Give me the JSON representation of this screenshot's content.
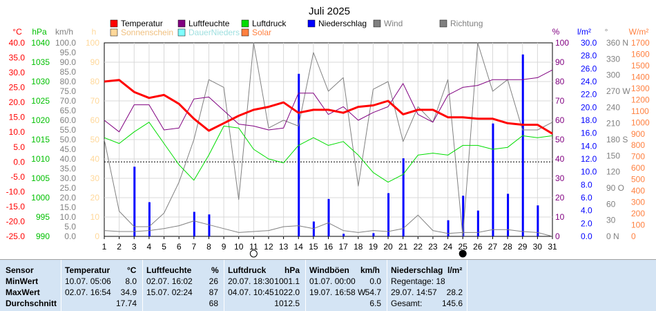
{
  "chart_data": {
    "type": "line",
    "title": "Juli 2025",
    "x": [
      1,
      2,
      3,
      4,
      5,
      6,
      7,
      8,
      9,
      10,
      11,
      12,
      13,
      14,
      15,
      16,
      17,
      18,
      19,
      20,
      21,
      22,
      23,
      24,
      25,
      26,
      27,
      28,
      29,
      30,
      31
    ],
    "legend": [
      {
        "name": "Temperatur",
        "color": "#ff0000",
        "text_color": "#000000"
      },
      {
        "name": "Luftfeuchte",
        "color": "#800080",
        "text_color": "#000000"
      },
      {
        "name": "Luftdruck",
        "color": "#00dd00",
        "text_color": "#000000"
      },
      {
        "name": "Niederschlag",
        "color": "#0000ff",
        "text_color": "#000000"
      },
      {
        "name": "Wind",
        "color": "#808080",
        "text_color": "#808080"
      },
      {
        "name": "Richtung",
        "color": "#808080",
        "text_color": "#808080"
      },
      {
        "name": "Sonnenschein",
        "color": "#ffd89a",
        "text_color": "#f0c080"
      },
      {
        "name": "DauerNieders",
        "color": "#80ffff",
        "text_color": "#a0e0e0"
      },
      {
        "name": "Solar",
        "color": "#ff8040",
        "text_color": "#ff8040"
      }
    ],
    "axes": [
      {
        "unit": "°C",
        "color": "#ff0000",
        "ticks": [
          "40.0",
          "35.0",
          "30.0",
          "25.0",
          "20.0",
          "15.0",
          "10.0",
          "5.0",
          "0.0",
          "-5.0",
          "-10.0",
          "-15.0",
          "-20.0",
          "-25.0"
        ],
        "min": -25,
        "max": 40
      },
      {
        "unit": "hPa",
        "color": "#00c000",
        "ticks": [
          "1040",
          "1035",
          "1030",
          "1025",
          "1020",
          "1015",
          "1010",
          "1005",
          "1000",
          "995",
          "990"
        ],
        "min": 990,
        "max": 1040
      },
      {
        "unit": "km/h",
        "color": "#808080",
        "ticks": [
          "100.0",
          "95.0",
          "90.0",
          "85.0",
          "80.0",
          "75.0",
          "70.0",
          "65.0",
          "60.0",
          "55.0",
          "50.0",
          "45.0",
          "40.0",
          "35.0",
          "30.0",
          "25.0",
          "20.0",
          "15.0",
          "10.0",
          "5.0",
          "0.0"
        ],
        "min": 0,
        "max": 100
      },
      {
        "unit": "h",
        "color": "#ffd89a",
        "ticks": [
          "100",
          "90",
          "80",
          "70",
          "60",
          "50",
          "40",
          "30",
          "20",
          "10",
          "0"
        ],
        "min": 0,
        "max": 100
      },
      {
        "unit": "%",
        "color": "#800080",
        "ticks": [
          "100",
          "90",
          "80",
          "70",
          "60",
          "50",
          "40",
          "30",
          "20",
          "10",
          "0"
        ],
        "min": 0,
        "max": 100
      },
      {
        "unit": "l/m²",
        "color": "#0000ff",
        "ticks": [
          "30.0",
          "28.0",
          "26.0",
          "24.0",
          "22.0",
          "20.0",
          "18.0",
          "16.0",
          "14.0",
          "12.0",
          "10.0",
          "8.0",
          "6.0",
          "4.0",
          "2.0",
          "0.0"
        ],
        "min": 0,
        "max": 30
      },
      {
        "unit": "°",
        "color": "#808080",
        "ticks": [
          "360 N",
          "330",
          "300",
          "270 W",
          "240",
          "210",
          "180 S",
          "150",
          "120",
          "90 O",
          "60",
          "30",
          "0 N"
        ],
        "min": 0,
        "max": 360
      },
      {
        "unit": "W/m²",
        "color": "#ff8040",
        "ticks": [
          "1700",
          "1600",
          "1500",
          "1400",
          "1300",
          "1200",
          "1100",
          "1000",
          "900",
          "800",
          "700",
          "600",
          "500",
          "400",
          "300",
          "200",
          "100",
          "0"
        ],
        "min": 0,
        "max": 1700
      }
    ],
    "series": [
      {
        "name": "Temperatur",
        "axis": "°C",
        "values": [
          27,
          27.5,
          23.5,
          21.5,
          22.5,
          19.5,
          14.5,
          10.5,
          13,
          15.5,
          17.5,
          18.5,
          20,
          16.5,
          17.5,
          17.5,
          16.5,
          18.5,
          19,
          20.5,
          16,
          17.5,
          17.5,
          15,
          15,
          14.5,
          14.5,
          13,
          12.5,
          12.5,
          9.5
        ]
      },
      {
        "name": "Luftfeuchte",
        "axis": "%",
        "values": [
          60,
          54,
          68,
          68,
          55,
          56,
          71,
          72,
          65,
          58,
          57,
          55,
          56,
          74,
          74,
          63,
          67,
          60,
          64,
          67,
          79,
          63,
          59,
          73,
          77,
          78,
          81,
          81,
          81,
          82,
          86
        ]
      },
      {
        "name": "Luftdruck",
        "axis": "hPa",
        "values": [
          1015.5,
          1014,
          1017,
          1019.5,
          1014,
          1008.5,
          1004.5,
          1011,
          1018.5,
          1018,
          1012.5,
          1010,
          1009,
          1013.5,
          1015.5,
          1013.5,
          1014.5,
          1011,
          1006.5,
          1004,
          1006,
          1011,
          1011.5,
          1011,
          1013.5,
          1013.5,
          1012.5,
          1013,
          1016,
          1015.5,
          1016
        ]
      },
      {
        "name": "Wind",
        "axis": "km/h",
        "values": [
          50,
          13,
          5,
          5,
          12,
          28,
          50,
          81,
          77,
          19,
          100,
          56,
          60,
          57,
          95,
          75,
          82,
          26,
          76,
          80,
          49,
          67,
          59,
          81,
          0,
          100,
          75,
          81,
          55,
          55,
          59
        ]
      },
      {
        "name": "Richtung",
        "axis": "°",
        "values": [
          0,
          0,
          0,
          0,
          0,
          0,
          0,
          0,
          0,
          0,
          0,
          0,
          0,
          0,
          0,
          0,
          0,
          0,
          0,
          0,
          0,
          0,
          0,
          0,
          0,
          0,
          0,
          0,
          0,
          0,
          0
        ]
      },
      {
        "name": "Windmittel",
        "axis": "km/h",
        "values": [
          3,
          2.5,
          2.5,
          3,
          4,
          5.5,
          8,
          6,
          4,
          2,
          2.5,
          3,
          5,
          5.5,
          4,
          7,
          3,
          2,
          3,
          2.5,
          4,
          11,
          3,
          1.5,
          2,
          2,
          3.5,
          3.5,
          2.5,
          2,
          0
        ]
      },
      {
        "name": "Niederschlag",
        "axis": "l/m²",
        "values": [
          0,
          0,
          10.8,
          5.3,
          0,
          0,
          3.8,
          3.4,
          0,
          0,
          0,
          0,
          0,
          25.2,
          2.3,
          5.8,
          0.4,
          0,
          0.5,
          6.7,
          12.1,
          0,
          0,
          2.5,
          6.3,
          4.0,
          17.5,
          6.6,
          28.2,
          4.8,
          0
        ]
      }
    ],
    "reference_line": {
      "axis": "°C",
      "value": 0,
      "style": "dotted"
    },
    "moon_phases": [
      {
        "day": 11,
        "phase": "full"
      },
      {
        "day": 25,
        "phase": "new"
      }
    ],
    "xlim": [
      1,
      31
    ],
    "grid": true
  },
  "stats": {
    "headers": {
      "sensor": "Sensor",
      "temp": "Temperatur",
      "temp_unit": "°C",
      "hum": "Luftfeuchte",
      "hum_unit": "%",
      "press": "Luftdruck",
      "press_unit": "hPa",
      "wind": "Windböen",
      "wind_unit": "km/h",
      "rain": "Niederschlag",
      "rain_unit": "l/m²"
    },
    "rows": [
      {
        "label": "MinWert",
        "temp_time": "10.07.  05:06",
        "temp_val": "8.0",
        "hum_time": "02.07.  16:02",
        "hum_val": "26",
        "press_time": "20.07.  18:30",
        "press_val": "1001.1",
        "wind_time": "01.07.  00:00",
        "wind_val": "0.0",
        "rain_text": "Regentage: 18",
        "rain_val": ""
      },
      {
        "label": "MaxWert",
        "temp_time": "02.07.  16:54",
        "temp_val": "34.9",
        "hum_time": "15.07.  02:24",
        "hum_val": "87",
        "press_time": "04.07.  10:45",
        "press_val": "1022.0",
        "wind_time": "19.07.  16:58  W",
        "wind_val": "54.7",
        "rain_text": "29.07.  14:57",
        "rain_val": "28.2"
      },
      {
        "label": "Durchschnitt",
        "temp_time": "",
        "temp_val": "17.74",
        "hum_time": "",
        "hum_val": "68",
        "press_time": "",
        "press_val": "1012.5",
        "wind_time": "",
        "wind_val": "6.5",
        "rain_text": "Gesamt:",
        "rain_val": "145.6"
      }
    ]
  }
}
